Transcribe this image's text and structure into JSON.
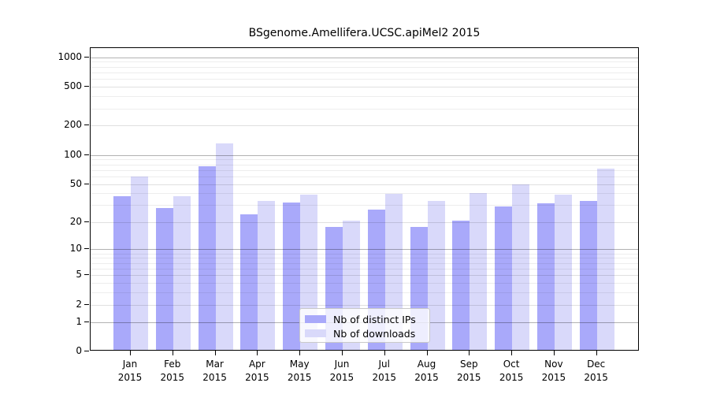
{
  "chart_data": {
    "type": "bar",
    "title": "BSgenome.Amellifera.UCSC.apiMel2 2015",
    "months": [
      "Jan",
      "Feb",
      "Mar",
      "Apr",
      "May",
      "Jun",
      "Jul",
      "Aug",
      "Sep",
      "Oct",
      "Nov",
      "Dec"
    ],
    "year": "2015",
    "series": [
      {
        "name": "Nb of distinct IPs",
        "color": "#a9a9fa",
        "values": [
          36,
          27,
          74,
          23,
          31,
          17,
          26,
          17,
          20,
          28,
          30,
          32
        ]
      },
      {
        "name": "Nb of downloads",
        "color": "#d9d9fa",
        "values": [
          58,
          36,
          127,
          32,
          37,
          20,
          38,
          32,
          39,
          48,
          37,
          70
        ]
      }
    ],
    "y_ticks": [
      0,
      1,
      2,
      5,
      10,
      20,
      50,
      100,
      200,
      500,
      1000
    ],
    "y_scale": "log10(value+1)",
    "ylim": [
      0,
      1200
    ],
    "grid": true,
    "legend_position": "bottom-center",
    "xlabel": "",
    "ylabel": ""
  }
}
